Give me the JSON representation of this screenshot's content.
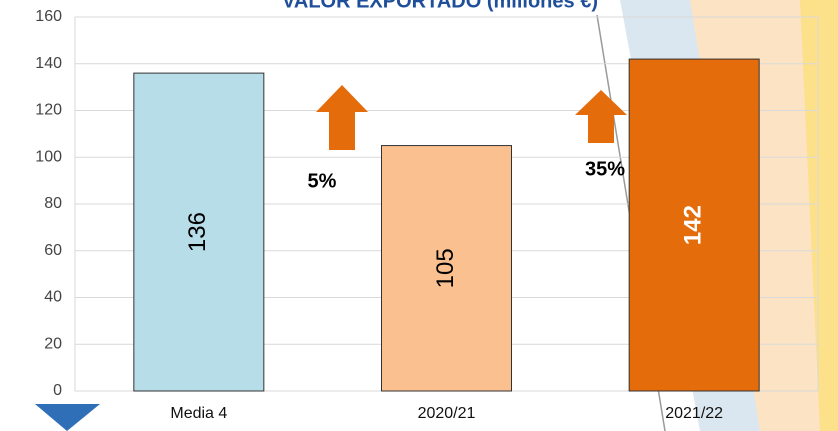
{
  "chart_data": {
    "type": "bar",
    "title": "VALOR EXPORTADO (millones €)",
    "categories": [
      "Media 4",
      "2020/21",
      "2021/22"
    ],
    "values": [
      136,
      105,
      142
    ],
    "colors": [
      "#b7dde8",
      "#fac090",
      "#e46c0a"
    ],
    "label_colors": [
      "#000000",
      "#000000",
      "#ffffff"
    ],
    "ylim": [
      0,
      160
    ],
    "yticks": [
      0,
      20,
      40,
      60,
      80,
      100,
      120,
      140,
      160
    ],
    "grid": true,
    "annotations": [
      "5%",
      "35%"
    ]
  }
}
